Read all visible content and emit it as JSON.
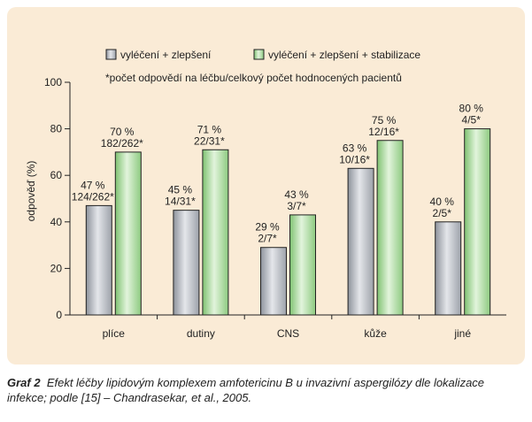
{
  "chart_data": {
    "type": "bar",
    "categories": [
      "plíce",
      "dutiny",
      "CNS",
      "kůže",
      "jiné"
    ],
    "series": [
      {
        "name": "vyléčení + zlepšení",
        "values": [
          47,
          45,
          29,
          63,
          40
        ],
        "labels_pct": [
          "47 %",
          "45 %",
          "29 %",
          "63 %",
          "40 %"
        ],
        "labels_frac": [
          "124/262*",
          "14/31*",
          "2/7*",
          "10/16*",
          "2/5*"
        ],
        "color": "#b8bcc3"
      },
      {
        "name": "vyléčení + zlepšení + stabilizace",
        "values": [
          70,
          71,
          43,
          75,
          80
        ],
        "labels_pct": [
          "70 %",
          "71 %",
          "43 %",
          "75 %",
          "80 %"
        ],
        "labels_frac": [
          "182/262*",
          "22/31*",
          "3/7*",
          "12/16*",
          "4/5*"
        ],
        "color": "#b9dfb0"
      }
    ],
    "ylabel": "odpověď (%)",
    "ylim": [
      0,
      100
    ],
    "yticks": [
      "0",
      "20",
      "40",
      "60",
      "80",
      "100"
    ],
    "note": "*počet odpovědí na léčbu/celkový počet hodnocených pacientů",
    "legend_position": "top"
  },
  "caption": {
    "prefix": "Graf 2",
    "text": "Efekt léčby lipidovým komplexem amfotericinu B u invazivní aspergilózy dle lokalizace infekce; podle [15] – Chandrasekar, et al., 2005."
  }
}
